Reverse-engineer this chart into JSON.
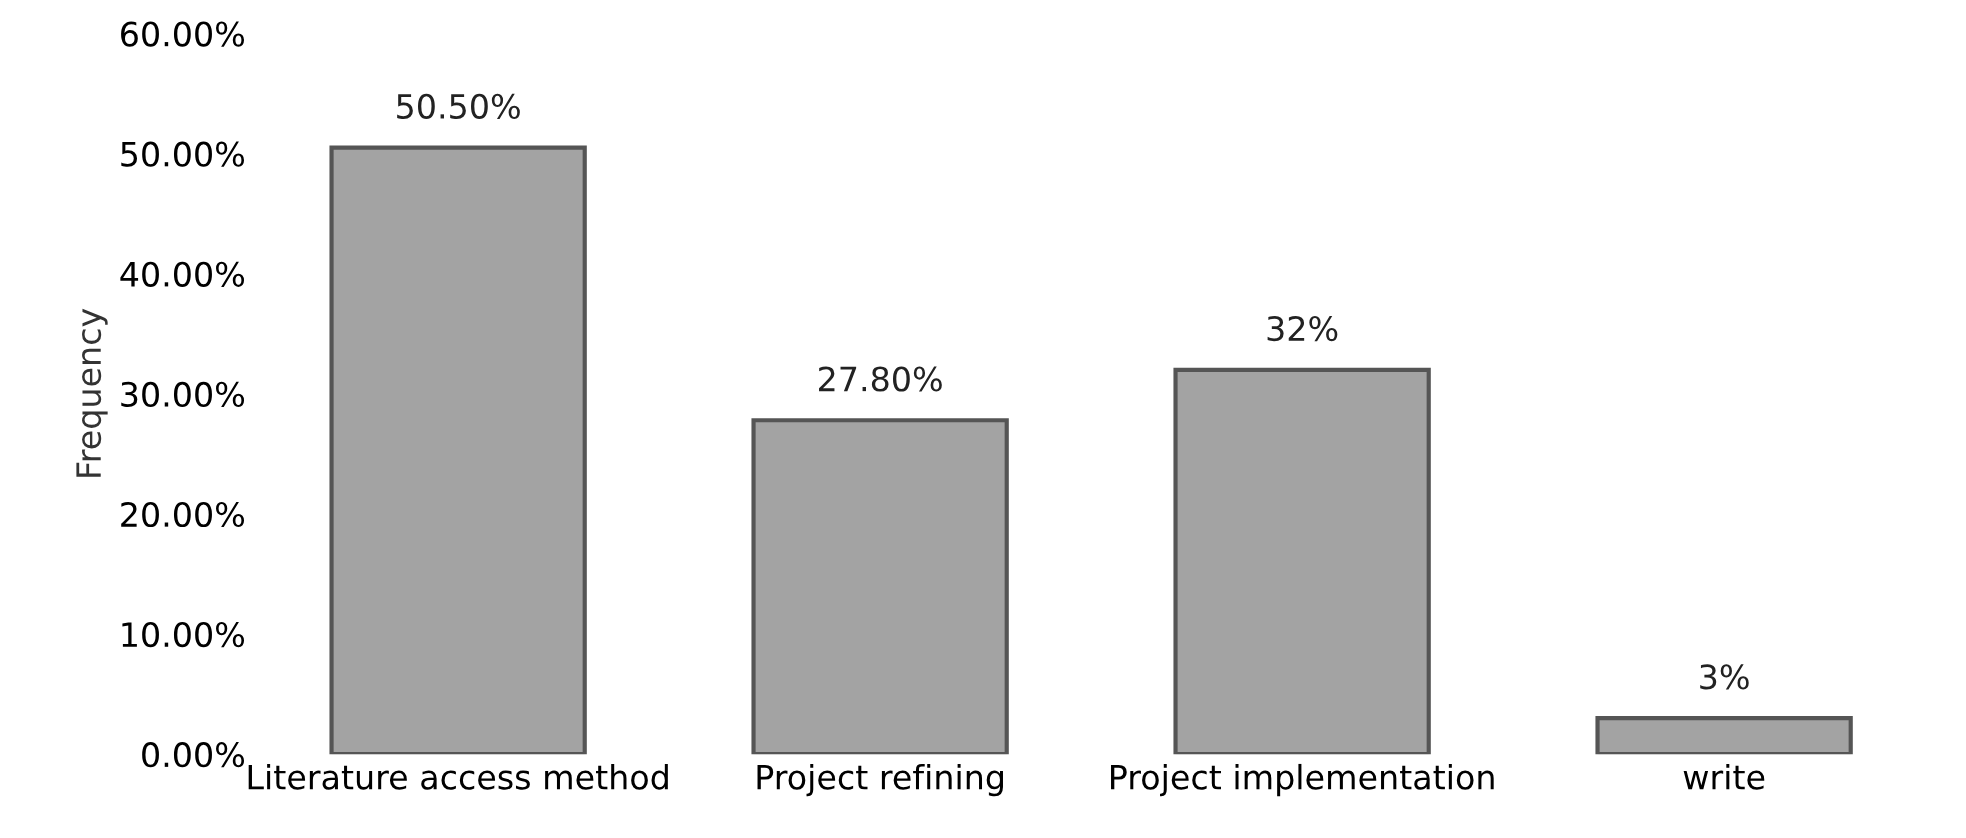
{
  "chart_data": {
    "type": "bar",
    "ylabel": "Frequency",
    "categories": [
      "Literature access method",
      "Project refining",
      "Project implementation",
      "write"
    ],
    "values": [
      50.5,
      27.8,
      32,
      3
    ],
    "value_labels": [
      "50.50%",
      "27.80%",
      "32%",
      "3%"
    ],
    "color": "#a3a3a3",
    "ylim": [
      0,
      60
    ],
    "yticks": [
      {
        "value": 0,
        "label": "0.00%"
      },
      {
        "value": 10,
        "label": "10.00%"
      },
      {
        "value": 20,
        "label": "20.00%"
      },
      {
        "value": 30,
        "label": "30.00%"
      },
      {
        "value": 40,
        "label": "40.00%"
      },
      {
        "value": 50,
        "label": "50.00%"
      },
      {
        "value": 60,
        "label": "60.00%"
      }
    ],
    "grid": false,
    "legend": false
  }
}
